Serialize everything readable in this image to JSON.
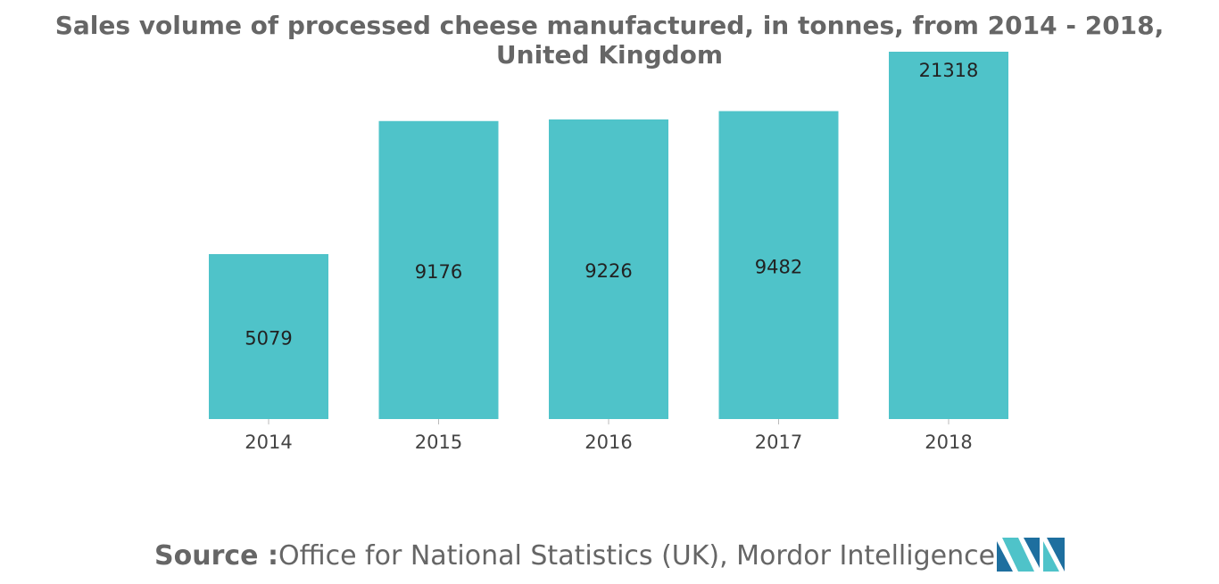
{
  "chart_data": {
    "type": "bar",
    "title": "Sales volume of processed cheese manufactured, in tonnes, from 2014 - 2018, United Kingdom",
    "categories": [
      "2014",
      "2015",
      "2016",
      "2017",
      "2018"
    ],
    "values": [
      5079,
      9176,
      9226,
      9482,
      21318
    ],
    "data_labels": [
      "5079",
      "9176",
      "9226",
      "9482",
      "21318"
    ],
    "xlabel": "",
    "ylabel": "",
    "ylim": [
      0,
      12500
    ],
    "grid": false,
    "legend": "none",
    "bar_color": "#4fc3c9"
  },
  "source": {
    "label": "Source :",
    "text": "Office for National Statistics (UK), Mordor Intelligence"
  },
  "logo": {
    "icon": "mordor-intelligence-logo-icon",
    "colors": [
      "#1e6f9f",
      "#4fc3c9"
    ]
  }
}
